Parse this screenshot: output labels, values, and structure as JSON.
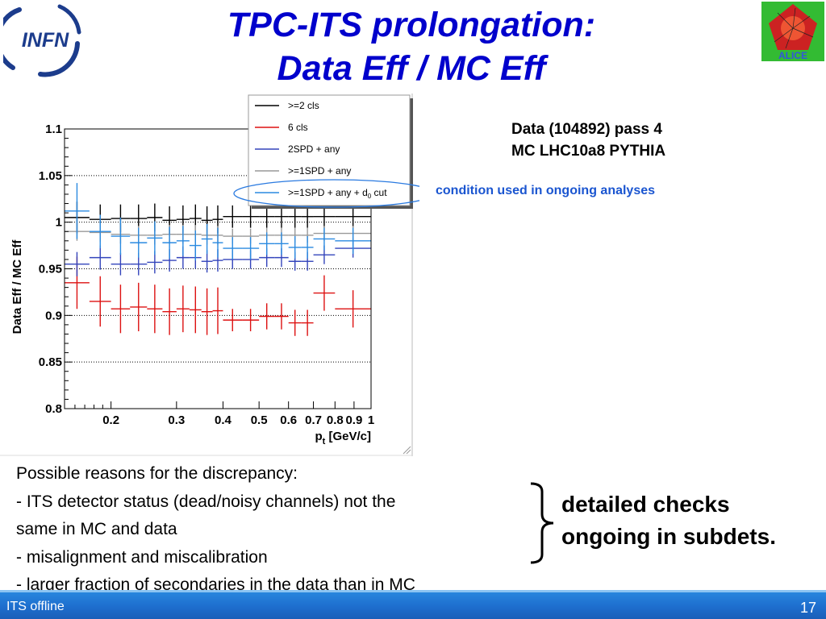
{
  "slide": {
    "title_line1": "TPC-ITS prolongation:",
    "title_line2": "Data Eff / MC Eff",
    "logo_infn_text": "INFN",
    "logo_alice_text": "ALICE",
    "data_info": [
      "Data (104892) pass 4",
      "MC LHC10a8 PYTHIA"
    ],
    "condition_note": "condition used in ongoing analyses",
    "reasons": [
      "Possible reasons for the discrepancy:",
      "- ITS detector status (dead/noisy channels) not the",
      "same in MC and data",
      "- misalignment and miscalibration",
      "- larger fraction of secondaries in the data than in MC"
    ],
    "checks": [
      "detailed checks",
      "ongoing in subdets."
    ],
    "footer_left": "ITS offline",
    "footer_right": "17",
    "colors": {
      "title": "#0000cc",
      "condition_note": "#1a55d0",
      "footer": "#1e6fcf"
    }
  },
  "chart_data": {
    "type": "scatter",
    "ylabel": "Data Eff / MC Eff",
    "xlabel": "p",
    "xlabel_sub": "t",
    "xlabel_unit": "[GeV/c]",
    "xlim": [
      0.15,
      1.0
    ],
    "ylim": [
      0.8,
      1.1
    ],
    "log_x": true,
    "grid": "horizontal dotted",
    "x_ticks": [
      0.2,
      0.3,
      0.4,
      0.5,
      0.6,
      0.7,
      0.8,
      0.9,
      1
    ],
    "x_tick_labels": [
      "0.2",
      "0.3",
      "0.4",
      "0.5",
      "0.6",
      "0.7",
      "0.8",
      "0.9",
      "1"
    ],
    "y_ticks": [
      0.8,
      0.85,
      0.9,
      0.95,
      1,
      1.05,
      1.1
    ],
    "y_tick_labels": [
      "0.8",
      "0.85",
      "0.9",
      "0.95",
      "1",
      "1.05",
      "1.1"
    ],
    "legend_position": "top-right",
    "legend_lines": [
      "#000000",
      "#dd1111",
      "#3344bb",
      "#999999",
      "#2a8ae0"
    ],
    "legend_texts": [
      {
        "text": ">=2 cls"
      },
      {
        "text": "6 cls"
      },
      {
        "text": "2SPD + any"
      },
      {
        "text": ">=1SPD + any"
      },
      {
        "text": ">=1SPD + any + d",
        "sub": "0",
        "after": " cut"
      }
    ],
    "highlighted_series": 4,
    "bin_edges": [
      0.15,
      0.175,
      0.2,
      0.225,
      0.25,
      0.275,
      0.3,
      0.325,
      0.35,
      0.375,
      0.4,
      0.45,
      0.5,
      0.55,
      0.6,
      0.65,
      0.7,
      0.8,
      1.0
    ],
    "series": [
      {
        "color": "#000000",
        "values": [
          1.005,
          1.003,
          1.004,
          1.004,
          1.005,
          1.002,
          1.003,
          1.004,
          1.002,
          1.003,
          1.006,
          1.006,
          1.006,
          1.006,
          1.006,
          1.006,
          1.006,
          1.006
        ],
        "err": [
          0.017,
          0.016,
          0.015,
          0.015,
          0.015,
          0.015,
          0.015,
          0.015,
          0.015,
          0.015,
          0.012,
          0.012,
          0.012,
          0.012,
          0.012,
          0.012,
          0.012,
          0.012
        ]
      },
      {
        "color": "#dd1111",
        "values": [
          0.935,
          0.915,
          0.907,
          0.909,
          0.907,
          0.904,
          0.907,
          0.906,
          0.904,
          0.905,
          0.895,
          0.895,
          0.899,
          0.899,
          0.892,
          0.892,
          0.924,
          0.907
        ],
        "err": [
          0.028,
          0.027,
          0.026,
          0.026,
          0.026,
          0.025,
          0.025,
          0.025,
          0.025,
          0.025,
          0.012,
          0.012,
          0.014,
          0.014,
          0.014,
          0.014,
          0.019,
          0.02
        ]
      },
      {
        "color": "#3344bb",
        "values": [
          0.955,
          0.962,
          0.955,
          0.955,
          0.957,
          0.959,
          0.962,
          0.962,
          0.958,
          0.959,
          0.96,
          0.96,
          0.962,
          0.962,
          0.958,
          0.958,
          0.965,
          0.972
        ],
        "err": [
          0.013,
          0.013,
          0.012,
          0.012,
          0.012,
          0.012,
          0.012,
          0.012,
          0.012,
          0.012,
          0.01,
          0.01,
          0.01,
          0.01,
          0.01,
          0.01,
          0.01,
          0.01
        ]
      },
      {
        "color": "#999999",
        "values": [
          0.99,
          0.989,
          0.987,
          0.986,
          0.986,
          0.987,
          0.987,
          0.987,
          0.986,
          0.986,
          0.985,
          0.985,
          0.986,
          0.986,
          0.986,
          0.986,
          0.988,
          0.988
        ],
        "err": [
          0.01,
          0.01,
          0.01,
          0.01,
          0.01,
          0.01,
          0.01,
          0.01,
          0.01,
          0.01,
          0.008,
          0.008,
          0.008,
          0.008,
          0.008,
          0.008,
          0.008,
          0.008
        ]
      },
      {
        "color": "#2a8ae0",
        "values": [
          1.012,
          0.99,
          0.985,
          0.978,
          0.983,
          0.978,
          0.98,
          0.975,
          0.982,
          0.978,
          0.972,
          0.972,
          0.977,
          0.977,
          0.973,
          0.973,
          0.982,
          0.98
        ],
        "err": [
          0.03,
          0.018,
          0.02,
          0.016,
          0.018,
          0.017,
          0.016,
          0.016,
          0.016,
          0.016,
          0.012,
          0.012,
          0.012,
          0.012,
          0.012,
          0.012,
          0.012,
          0.014
        ]
      }
    ]
  }
}
